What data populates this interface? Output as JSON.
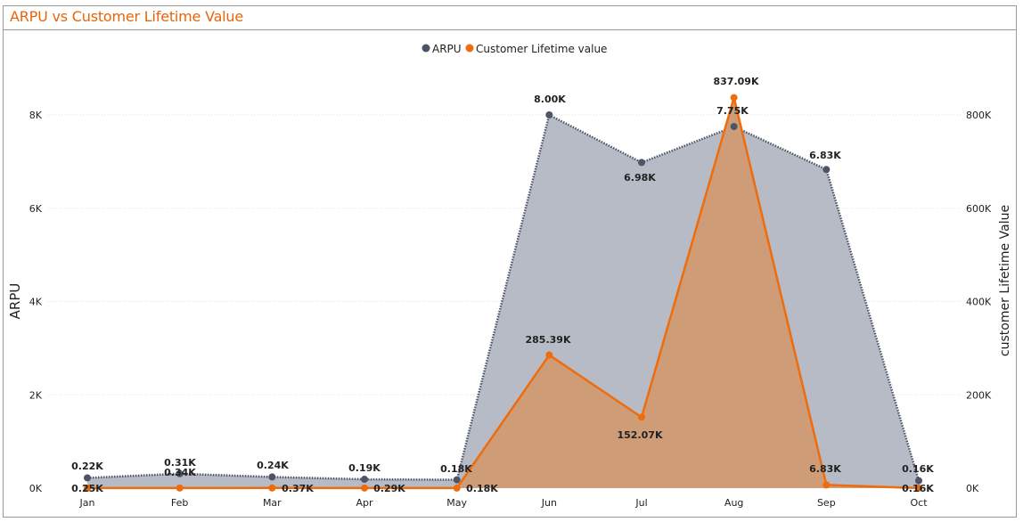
{
  "title": "ARPU vs Customer Lifetime Value",
  "colors": {
    "title": "#e8650a",
    "arpu_line": "#4d5468",
    "arpu_fill": "#b6bbc5",
    "clv_line": "#ee6c0c",
    "clv_fill": "#cf9c78",
    "grid": "#e0e0e0",
    "text": "#222222"
  },
  "chart_data": {
    "type": "area",
    "categories": [
      "Jan",
      "Feb",
      "Mar",
      "Apr",
      "May",
      "Jun",
      "Jul",
      "Aug",
      "Sep",
      "Oct"
    ],
    "series": [
      {
        "name": "ARPU",
        "axis": "left",
        "values": [
          220,
          310,
          240,
          190,
          180,
          8000,
          6980,
          7750,
          6830,
          160
        ],
        "labels": [
          "0.22K",
          "0.31K",
          "0.24K",
          "0.19K",
          "0.18K",
          "8.00K",
          "6.98K",
          "7.75K",
          "6.83K",
          "0.16K"
        ]
      },
      {
        "name": "Customer Lifetime value",
        "axis": "right",
        "values": [
          250,
          340,
          370,
          290,
          180,
          285390,
          152070,
          837090,
          6830,
          160
        ],
        "labels": [
          "0.25K",
          "0.34K",
          "0.37K",
          "0.29K",
          "0.18K",
          "285.39K",
          "152.07K",
          "837.09K",
          "6.83K",
          "0.16K"
        ]
      }
    ],
    "ylabel": "ARPU",
    "y2label": "customer Lifetime Value",
    "ylim": [
      0,
      8000
    ],
    "y2lim": [
      0,
      800000
    ],
    "yticks": [
      "0K",
      "2K",
      "4K",
      "6K",
      "8K"
    ],
    "y2ticks": [
      "0K",
      "200K",
      "400K",
      "600K",
      "800K"
    ],
    "grid": true,
    "legend": "top-center"
  }
}
